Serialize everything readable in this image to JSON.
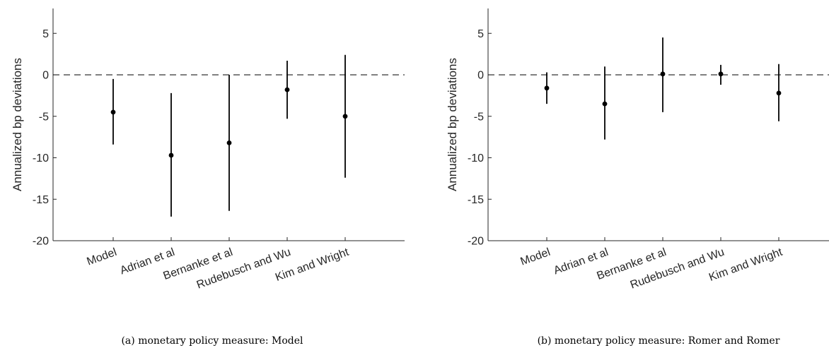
{
  "chart_data": [
    {
      "type": "scatter",
      "caption": "(a) monetary policy measure: Model",
      "ylabel": "Annualized bp deviations",
      "xlabel": "",
      "ylim": [
        -20,
        8
      ],
      "yticks": [
        5,
        0,
        -5,
        -10,
        -15,
        -20
      ],
      "categories": [
        "Model",
        "Adrian et al",
        "Bernanke et al",
        "Rudebusch and Wu",
        "Kim and Wright"
      ],
      "values": [
        -4.5,
        -9.7,
        -8.2,
        -1.8,
        -5.0
      ],
      "lower": [
        -8.4,
        -17.1,
        -16.4,
        -5.3,
        -12.4
      ],
      "upper": [
        -0.5,
        -2.2,
        0.0,
        1.7,
        2.4
      ],
      "reference_line": 0,
      "grid": false
    },
    {
      "type": "scatter",
      "caption": "(b) monetary policy measure: Romer and Romer",
      "ylabel": "Annualized bp deviations",
      "xlabel": "",
      "ylim": [
        -20,
        8
      ],
      "yticks": [
        5,
        0,
        -5,
        -10,
        -15,
        -20
      ],
      "categories": [
        "Model",
        "Adrian et al",
        "Bernanke et al",
        "Rudebusch and Wu",
        "Kim and Wright"
      ],
      "values": [
        -1.6,
        -3.5,
        0.1,
        0.1,
        -2.2
      ],
      "lower": [
        -3.5,
        -7.8,
        -4.5,
        -1.2,
        -5.6
      ],
      "upper": [
        0.3,
        1.0,
        4.5,
        1.2,
        1.3
      ],
      "reference_line": 0,
      "grid": false
    }
  ]
}
